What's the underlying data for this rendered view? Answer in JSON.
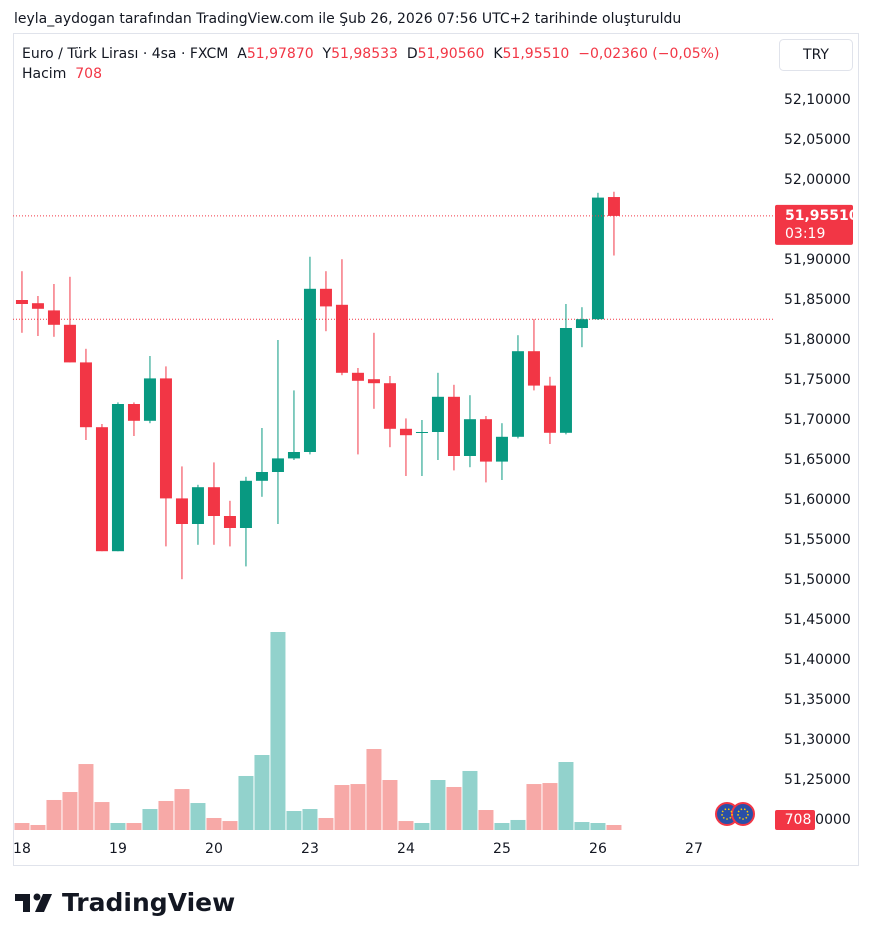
{
  "header": {
    "attribution": "leyla_aydogan tarafından TradingView.com ile Şub 26, 2026 07:56 UTC+2 tarihinde oluşturuldu"
  },
  "legend": {
    "symbol": "Euro / Türk Lirası · 4sa · FXCM",
    "open_label": "A",
    "open": "51,97870",
    "high_label": "Y",
    "high": "51,98533",
    "low_label": "D",
    "low": "51,90560",
    "close_label": "K",
    "close": "51,95510",
    "change": "−0,02360 (−0,05%)",
    "volume_label": "Hacim"
  },
  "currency": "TRY",
  "brand": "TradingView",
  "chart_data": {
    "type": "candlestick",
    "x": [
      0,
      1,
      2,
      3,
      4,
      5,
      6,
      7,
      8,
      9,
      10,
      11,
      12,
      13,
      14,
      15,
      16,
      17,
      18,
      19,
      20,
      21,
      22,
      23,
      24,
      25,
      26,
      27,
      28,
      29,
      30,
      31,
      32,
      33,
      34,
      35,
      36,
      37
    ],
    "open": [
      51.85,
      51.846,
      51.837,
      51.819,
      51.772,
      51.691,
      51.536,
      51.72,
      51.699,
      51.752,
      51.602,
      51.57,
      51.616,
      51.58,
      51.565,
      51.624,
      51.635,
      51.652,
      51.66,
      51.864,
      51.844,
      51.759,
      51.751,
      51.746,
      51.689,
      51.684,
      51.685,
      51.729,
      51.655,
      51.701,
      51.648,
      51.679,
      51.786,
      51.743,
      51.684,
      51.815,
      51.826,
      51.9787
    ],
    "high": [
      51.886,
      51.855,
      51.87,
      51.879,
      51.789,
      51.695,
      51.722,
      51.722,
      51.78,
      51.767,
      51.642,
      51.619,
      51.647,
      51.599,
      51.629,
      51.69,
      51.8,
      51.737,
      51.904,
      51.886,
      51.901,
      51.765,
      51.809,
      51.755,
      51.702,
      51.7,
      51.759,
      51.744,
      51.731,
      51.705,
      51.696,
      51.806,
      51.826,
      51.754,
      51.845,
      51.841,
      51.984,
      51.98533
    ],
    "low": [
      51.809,
      51.805,
      51.804,
      51.772,
      51.675,
      51.536,
      51.536,
      51.68,
      51.696,
      51.542,
      51.501,
      51.544,
      51.544,
      51.542,
      51.517,
      51.604,
      51.57,
      51.65,
      51.657,
      51.811,
      51.756,
      51.657,
      51.714,
      51.666,
      51.63,
      51.63,
      51.65,
      51.637,
      51.641,
      51.622,
      51.625,
      51.677,
      51.737,
      51.67,
      51.682,
      51.791,
      51.825,
      51.9056
    ],
    "close": [
      51.845,
      51.839,
      51.819,
      51.772,
      51.691,
      51.536,
      51.72,
      51.699,
      51.752,
      51.602,
      51.57,
      51.616,
      51.58,
      51.565,
      51.624,
      51.635,
      51.652,
      51.66,
      51.864,
      51.842,
      51.759,
      51.749,
      51.746,
      51.689,
      51.681,
      51.685,
      51.729,
      51.655,
      51.701,
      51.648,
      51.679,
      51.786,
      51.743,
      51.684,
      51.815,
      51.826,
      51.978,
      51.9551
    ],
    "volume": [
      990,
      710,
      4250,
      5380,
      9340,
      3960,
      990,
      990,
      2970,
      4110,
      5800,
      3820,
      1700,
      1270,
      7650,
      10620,
      28040,
      2690,
      2970,
      1700,
      6370,
      6510,
      11470,
      7080,
      1270,
      990,
      7080,
      6090,
      8360,
      2830,
      990,
      1420,
      6510,
      6650,
      9630,
      1130,
      990,
      708
    ],
    "up_color": "#089981",
    "down_color": "#f23645",
    "volume_up_color": "#92d2cc",
    "volume_down_color": "#f7a9a7",
    "xlim": [
      -0.56,
      46.94
    ],
    "xticks": [
      {
        "value": 0,
        "label": "18"
      },
      {
        "value": 6,
        "label": "19"
      },
      {
        "value": 12,
        "label": "20"
      },
      {
        "value": 18,
        "label": "23"
      },
      {
        "value": 24,
        "label": "24"
      },
      {
        "value": 30,
        "label": "25"
      },
      {
        "value": 36,
        "label": "26"
      },
      {
        "value": 42,
        "label": "27"
      }
    ],
    "ylim": [
      51.1775,
      52.18375
    ],
    "yticks": [
      {
        "value": 51.2,
        "label": "51,20000"
      },
      {
        "value": 51.25,
        "label": "51,25000"
      },
      {
        "value": 51.3,
        "label": "51,30000"
      },
      {
        "value": 51.35,
        "label": "51,35000"
      },
      {
        "value": 51.4,
        "label": "51,40000"
      },
      {
        "value": 51.45,
        "label": "51,45000"
      },
      {
        "value": 51.5,
        "label": "51,50000"
      },
      {
        "value": 51.55,
        "label": "51,55000"
      },
      {
        "value": 51.6,
        "label": "51,60000"
      },
      {
        "value": 51.65,
        "label": "51,65000"
      },
      {
        "value": 51.7,
        "label": "51,70000"
      },
      {
        "value": 51.75,
        "label": "51,75000"
      },
      {
        "value": 51.8,
        "label": "51,80000"
      },
      {
        "value": 51.85,
        "label": "51,85000"
      },
      {
        "value": 51.9,
        "label": "51,90000"
      },
      {
        "value": 51.95,
        "label": "51,95000"
      },
      {
        "value": 52.0,
        "label": "52,00000"
      },
      {
        "value": 52.05,
        "label": "52,05000"
      },
      {
        "value": 52.1,
        "label": "52,10000"
      }
    ],
    "last_price_label": "51,95510",
    "countdown": "03:19",
    "prev_close_line": 51.826
  }
}
